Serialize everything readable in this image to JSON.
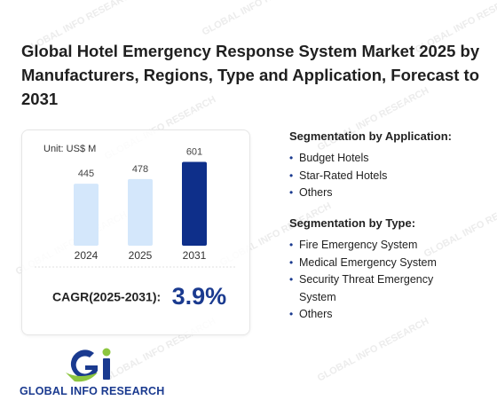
{
  "title": "Global Hotel Emergency Response System Market 2025 by Manufacturers, Regions, Type and Application, Forecast to 2031",
  "chart_data": {
    "type": "bar",
    "unit_label": "Unit: US$ M",
    "categories": [
      "2024",
      "2025",
      "2031"
    ],
    "values": [
      445,
      478,
      601
    ],
    "ylim": [
      0,
      700
    ],
    "highlight_category": "2031",
    "colors": {
      "normal": "#d4e7fb",
      "highlight": "#0e2f8a"
    },
    "grid": false
  },
  "cagr": {
    "label": "CAGR(2025-2031):",
    "value": "3.9%"
  },
  "segmentation_application": {
    "heading": "Segmentation by Application:",
    "items": [
      "Budget Hotels",
      "Star-Rated Hotels",
      "Others"
    ]
  },
  "segmentation_type": {
    "heading": "Segmentation by Type:",
    "items": [
      "Fire Emergency System",
      "Medical Emergency System",
      "Security Threat Emergency System",
      "Others"
    ]
  },
  "logo": {
    "text": "GLOBAL INFO RESEARCH",
    "watermark_text": "GLOBAL INFO RESEARCH"
  }
}
